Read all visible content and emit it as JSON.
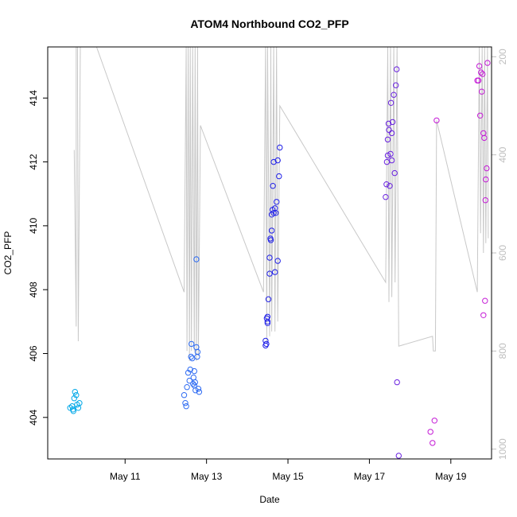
{
  "chart_data": {
    "type": "scatter",
    "title": "ATOM4 Northbound CO2_PFP",
    "xlabel": "Date",
    "ylabel": "CO2_PFP",
    "x_unit": "day of May",
    "x_range": [
      9.1,
      20.0
    ],
    "y_range": [
      402.7,
      415.6
    ],
    "y_ticks": [
      404,
      406,
      408,
      410,
      412,
      414
    ],
    "x_ticks": [
      {
        "value": 11,
        "label": "May 11"
      },
      {
        "value": 13,
        "label": "May 13"
      },
      {
        "value": 15,
        "label": "May 15"
      },
      {
        "value": 17,
        "label": "May 17"
      },
      {
        "value": 19,
        "label": "May 19"
      }
    ],
    "secondary_axis": {
      "side": "right",
      "inverted": true,
      "range": [
        180,
        1020
      ],
      "ticks": [
        200,
        400,
        600,
        800,
        1000
      ],
      "color": "#bebebe"
    },
    "secondary_series": {
      "color": "#c8c8c8",
      "points": [
        [
          9.75,
          390
        ],
        [
          9.8,
          750
        ],
        [
          9.8,
          180
        ],
        [
          9.83,
          180
        ],
        [
          9.85,
          780
        ],
        [
          9.9,
          180
        ],
        [
          9.95,
          180
        ],
        [
          10.3,
          180
        ],
        [
          12.45,
          680
        ],
        [
          12.5,
          180
        ],
        [
          12.52,
          800
        ],
        [
          12.55,
          180
        ],
        [
          12.58,
          820
        ],
        [
          12.6,
          180
        ],
        [
          12.63,
          800
        ],
        [
          12.66,
          180
        ],
        [
          12.7,
          800
        ],
        [
          12.72,
          180
        ],
        [
          12.75,
          820
        ],
        [
          12.78,
          180
        ],
        [
          12.8,
          810
        ],
        [
          12.85,
          340
        ],
        [
          14.4,
          680
        ],
        [
          14.45,
          180
        ],
        [
          14.48,
          780
        ],
        [
          14.5,
          180
        ],
        [
          14.55,
          770
        ],
        [
          14.58,
          180
        ],
        [
          14.6,
          760
        ],
        [
          14.65,
          180
        ],
        [
          14.68,
          760
        ],
        [
          14.72,
          180
        ],
        [
          14.75,
          740
        ],
        [
          14.8,
          300
        ],
        [
          17.4,
          660
        ],
        [
          17.45,
          180
        ],
        [
          17.48,
          700
        ],
        [
          17.52,
          180
        ],
        [
          17.55,
          690
        ],
        [
          17.6,
          180
        ],
        [
          17.63,
          660
        ],
        [
          17.68,
          180
        ],
        [
          17.72,
          790
        ],
        [
          18.55,
          770
        ],
        [
          18.57,
          800
        ],
        [
          18.62,
          800
        ],
        [
          18.65,
          330
        ],
        [
          19.65,
          680
        ],
        [
          19.7,
          180
        ],
        [
          19.73,
          560
        ],
        [
          19.77,
          180
        ],
        [
          19.8,
          600
        ],
        [
          19.83,
          180
        ],
        [
          19.86,
          580
        ],
        [
          19.9,
          180
        ],
        [
          19.92,
          570
        ]
      ]
    },
    "series": [
      {
        "color": "#00a8e8",
        "points": [
          [
            9.65,
            404.3
          ],
          [
            9.7,
            404.35
          ],
          [
            9.72,
            404.25
          ],
          [
            9.75,
            404.6
          ],
          [
            9.77,
            404.8
          ],
          [
            9.8,
            404.7
          ],
          [
            9.82,
            404.4
          ],
          [
            9.85,
            404.3
          ],
          [
            9.88,
            404.45
          ],
          [
            9.73,
            404.2
          ]
        ]
      },
      {
        "color": "#2e6bf2",
        "points": [
          [
            12.45,
            404.7
          ],
          [
            12.48,
            404.45
          ],
          [
            12.5,
            404.35
          ],
          [
            12.52,
            404.95
          ],
          [
            12.55,
            405.4
          ],
          [
            12.58,
            405.15
          ],
          [
            12.6,
            405.5
          ],
          [
            12.62,
            405.9
          ],
          [
            12.63,
            406.3
          ],
          [
            12.65,
            405.85
          ],
          [
            12.67,
            405.05
          ],
          [
            12.68,
            405.25
          ],
          [
            12.7,
            405.0
          ],
          [
            12.72,
            405.1
          ],
          [
            12.73,
            404.85
          ],
          [
            12.75,
            406.2
          ],
          [
            12.77,
            405.9
          ],
          [
            12.78,
            406.05
          ],
          [
            12.8,
            404.9
          ],
          [
            12.82,
            404.8
          ],
          [
            12.7,
            405.45
          ],
          [
            12.75,
            408.95
          ]
        ]
      },
      {
        "color": "#2020e8",
        "points": [
          [
            14.45,
            406.4
          ],
          [
            14.47,
            406.3
          ],
          [
            14.48,
            407.1
          ],
          [
            14.5,
            407.15
          ],
          [
            14.5,
            406.95
          ],
          [
            14.52,
            407.7
          ],
          [
            14.55,
            408.5
          ],
          [
            14.55,
            409.0
          ],
          [
            14.57,
            409.6
          ],
          [
            14.58,
            409.55
          ],
          [
            14.6,
            409.85
          ],
          [
            14.6,
            410.35
          ],
          [
            14.62,
            410.5
          ],
          [
            14.63,
            411.25
          ],
          [
            14.65,
            410.4
          ],
          [
            14.65,
            412.0
          ],
          [
            14.68,
            410.55
          ],
          [
            14.68,
            408.55
          ],
          [
            14.7,
            410.4
          ],
          [
            14.72,
            410.75
          ],
          [
            14.75,
            408.9
          ],
          [
            14.75,
            412.05
          ],
          [
            14.78,
            411.55
          ],
          [
            14.8,
            412.45
          ],
          [
            14.45,
            406.25
          ],
          [
            14.5,
            407.0
          ]
        ]
      },
      {
        "color": "#6a22e0",
        "points": [
          [
            17.4,
            410.9
          ],
          [
            17.42,
            411.3
          ],
          [
            17.43,
            412.0
          ],
          [
            17.45,
            412.2
          ],
          [
            17.45,
            412.7
          ],
          [
            17.47,
            413.2
          ],
          [
            17.48,
            413.0
          ],
          [
            17.5,
            411.25
          ],
          [
            17.52,
            412.25
          ],
          [
            17.53,
            413.85
          ],
          [
            17.55,
            412.9
          ],
          [
            17.55,
            412.05
          ],
          [
            17.57,
            413.25
          ],
          [
            17.6,
            414.1
          ],
          [
            17.62,
            411.65
          ],
          [
            17.65,
            414.4
          ],
          [
            17.67,
            414.9
          ],
          [
            17.68,
            405.1
          ],
          [
            17.72,
            402.8
          ]
        ]
      },
      {
        "color": "#c41ad6",
        "points": [
          [
            18.5,
            403.55
          ],
          [
            18.55,
            403.2
          ],
          [
            18.6,
            403.9
          ],
          [
            18.65,
            413.3
          ],
          [
            19.65,
            414.55
          ],
          [
            19.68,
            414.55
          ],
          [
            19.7,
            415.0
          ],
          [
            19.72,
            413.45
          ],
          [
            19.74,
            414.8
          ],
          [
            19.76,
            414.2
          ],
          [
            19.78,
            414.75
          ],
          [
            19.8,
            412.9
          ],
          [
            19.82,
            412.75
          ],
          [
            19.8,
            407.2
          ],
          [
            19.84,
            407.65
          ],
          [
            19.85,
            410.8
          ],
          [
            19.86,
            411.45
          ],
          [
            19.88,
            411.8
          ],
          [
            19.9,
            415.1
          ]
        ]
      }
    ]
  }
}
